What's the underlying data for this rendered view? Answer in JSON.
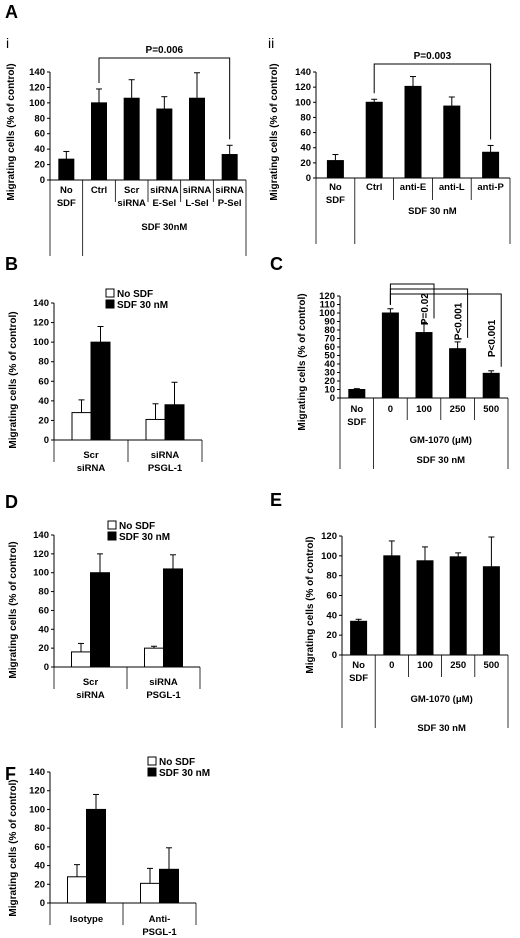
{
  "panels": [
    {
      "id": "Ai",
      "label": "A",
      "sublabel": "i",
      "type": "bar",
      "ylabel": "Migrating cells (% of control)",
      "ylim": [
        0,
        140
      ],
      "yticks": [
        0,
        20,
        40,
        60,
        80,
        100,
        120,
        140
      ],
      "categories": [
        [
          "No",
          "SDF"
        ],
        [
          "Ctrl"
        ],
        [
          "Scr",
          "siRNA"
        ],
        [
          "siRNA",
          "E-Sel"
        ],
        [
          "siRNA",
          "L-Sel"
        ],
        [
          "siRNA",
          "P-Sel"
        ]
      ],
      "values": [
        27,
        100,
        106,
        92,
        106,
        33
      ],
      "errors": [
        10,
        18,
        24,
        16,
        33,
        12
      ],
      "group_label": "SDF 30nM",
      "annotations": [
        {
          "text": "P=0.006"
        }
      ]
    },
    {
      "id": "Aii",
      "label": "",
      "sublabel": "ii",
      "type": "bar",
      "ylabel": "Migrating cells (% of control)",
      "ylim": [
        0,
        140
      ],
      "yticks": [
        0,
        20,
        40,
        60,
        80,
        100,
        120,
        140
      ],
      "categories": [
        [
          "No",
          "SDF"
        ],
        [
          "Ctrl"
        ],
        [
          "anti-E"
        ],
        [
          "anti-L"
        ],
        [
          "anti-P"
        ]
      ],
      "values": [
        23,
        100,
        121,
        95,
        34
      ],
      "errors": [
        8,
        4,
        13,
        12,
        9
      ],
      "group_label": "SDF 30 nM",
      "annotations": [
        {
          "text": "P=0.003"
        }
      ]
    },
    {
      "id": "B",
      "label": "B",
      "sublabel": "",
      "type": "bar",
      "ylabel": "Migrating cells (% of control)",
      "ylim": [
        0,
        140
      ],
      "yticks": [
        0,
        20,
        40,
        60,
        80,
        100,
        120,
        140
      ],
      "categories": [
        [
          "Scr",
          "siRNA"
        ],
        [
          "siRNA",
          "PSGL-1"
        ]
      ],
      "series": [
        {
          "name": "No SDF",
          "values": [
            28,
            21
          ],
          "errors": [
            13,
            16
          ]
        },
        {
          "name": "SDF 30 nM",
          "values": [
            100,
            36
          ],
          "errors": [
            16,
            23
          ]
        }
      ]
    },
    {
      "id": "C",
      "label": "C",
      "sublabel": "",
      "type": "bar",
      "ylabel": "Migrating cells (% of control)",
      "ylim": [
        0,
        120
      ],
      "yticks": [
        0,
        10,
        20,
        30,
        40,
        50,
        60,
        70,
        80,
        90,
        100,
        110,
        120
      ],
      "categories": [
        [
          "No",
          "SDF"
        ],
        [
          "0"
        ],
        [
          "100"
        ],
        [
          "250"
        ],
        [
          "500"
        ]
      ],
      "values": [
        10,
        100,
        77,
        58,
        29
      ],
      "errors": [
        1,
        5,
        12,
        8,
        3
      ],
      "group_label": "GM-1070 (μM)",
      "group_label2": "SDF 30 nM",
      "annotations": [
        {
          "text": "P=0.02"
        },
        {
          "text": "P<0.001"
        },
        {
          "text": "P<0.001"
        }
      ]
    },
    {
      "id": "D",
      "label": "D",
      "sublabel": "",
      "type": "bar",
      "ylabel": "Migrating cells (% of control)",
      "ylim": [
        0,
        140
      ],
      "yticks": [
        0,
        20,
        40,
        60,
        80,
        100,
        120,
        140
      ],
      "categories": [
        [
          "Scr",
          "siRNA"
        ],
        [
          "siRNA",
          "PSGL-1"
        ]
      ],
      "series": [
        {
          "name": "No SDF",
          "values": [
            16,
            20
          ],
          "errors": [
            9,
            2
          ]
        },
        {
          "name": "SDF 30 nM",
          "values": [
            100,
            104
          ],
          "errors": [
            20,
            15
          ]
        }
      ]
    },
    {
      "id": "E",
      "label": "E",
      "sublabel": "",
      "type": "bar",
      "ylabel": "Migrating cells (% of control)",
      "ylim": [
        0,
        120
      ],
      "yticks": [
        0,
        20,
        40,
        60,
        80,
        100,
        120
      ],
      "categories": [
        [
          "No",
          "SDF"
        ],
        [
          "0"
        ],
        [
          "100"
        ],
        [
          "250"
        ],
        [
          "500"
        ]
      ],
      "values": [
        34,
        100,
        95,
        99,
        89
      ],
      "errors": [
        2,
        15,
        14,
        4,
        30
      ],
      "group_label": "GM-1070 (μM)",
      "group_label2": "SDF 30 nM"
    },
    {
      "id": "F",
      "label": "F",
      "sublabel": "",
      "type": "bar",
      "ylabel": "Migrating cells (% of control)",
      "ylim": [
        0,
        140
      ],
      "yticks": [
        0,
        20,
        40,
        60,
        80,
        100,
        120,
        140
      ],
      "categories": [
        [
          "Isotype"
        ],
        [
          "Anti-",
          "PSGL-1"
        ]
      ],
      "series": [
        {
          "name": "No SDF",
          "values": [
            28,
            21
          ],
          "errors": [
            13,
            16
          ]
        },
        {
          "name": "SDF 30 nM",
          "values": [
            100,
            36
          ],
          "errors": [
            16,
            23
          ]
        }
      ]
    }
  ]
}
